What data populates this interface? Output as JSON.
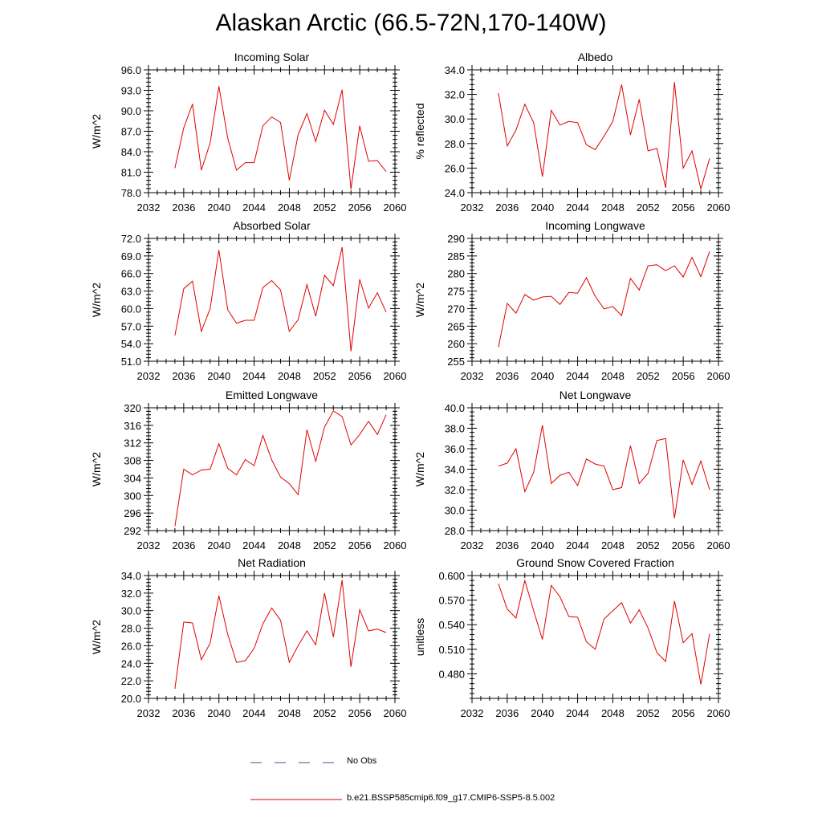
{
  "title": "Alaskan Arctic (66.5-72N,170-140W)",
  "colors": {
    "model_line": "#e00000",
    "obs_line": "#4a4aa0",
    "axis": "#000000"
  },
  "legend": [
    {
      "label": "No Obs",
      "style": "dashed",
      "color": "#4a4aa0"
    },
    {
      "label": "b.e21.BSSP585cmip6.f09_g17.CMIP6-SSP5-8.5.002",
      "style": "solid",
      "color": "#e00000"
    }
  ],
  "chart_data": [
    {
      "type": "line",
      "title": "Incoming Solar",
      "xlabel": "",
      "ylabel": "W/m^2",
      "xlim": [
        2032,
        2060
      ],
      "ylim": [
        78,
        96
      ],
      "xticks": [
        2032,
        2036,
        2040,
        2044,
        2048,
        2052,
        2056,
        2060
      ],
      "yticks": [
        "78.0",
        "81.0",
        "84.0",
        "87.0",
        "90.0",
        "93.0",
        "96.0"
      ],
      "x": [
        2035,
        2036,
        2037,
        2038,
        2039,
        2040,
        2041,
        2042,
        2043,
        2044,
        2045,
        2046,
        2047,
        2048,
        2049,
        2050,
        2051,
        2052,
        2053,
        2054,
        2055,
        2056,
        2057,
        2058,
        2059
      ],
      "y": [
        81.6,
        87.5,
        91.0,
        81.3,
        85.3,
        93.6,
        86.0,
        81.3,
        82.4,
        82.4,
        87.8,
        89.1,
        88.3,
        79.8,
        86.5,
        89.6,
        85.5,
        90.1,
        88.0,
        93.1,
        78.5,
        87.8,
        82.6,
        82.7,
        81.1
      ]
    },
    {
      "type": "line",
      "title": "Albedo",
      "xlabel": "",
      "ylabel": "% reflected",
      "xlim": [
        2032,
        2060
      ],
      "ylim": [
        24,
        34
      ],
      "xticks": [
        2032,
        2036,
        2040,
        2044,
        2048,
        2052,
        2056,
        2060
      ],
      "yticks": [
        "24.0",
        "26.0",
        "28.0",
        "30.0",
        "32.0",
        "34.0"
      ],
      "x": [
        2035,
        2036,
        2037,
        2038,
        2039,
        2040,
        2041,
        2042,
        2043,
        2044,
        2045,
        2046,
        2047,
        2048,
        2049,
        2050,
        2051,
        2052,
        2053,
        2054,
        2055,
        2056,
        2057,
        2058,
        2059
      ],
      "y": [
        32.1,
        27.8,
        29.1,
        31.2,
        29.7,
        25.3,
        30.7,
        29.5,
        29.8,
        29.7,
        27.9,
        27.5,
        28.6,
        29.8,
        32.8,
        28.7,
        31.6,
        27.4,
        27.6,
        24.4,
        33.0,
        26.0,
        27.4,
        24.3,
        26.8
      ]
    },
    {
      "type": "line",
      "title": "Absorbed Solar",
      "xlabel": "",
      "ylabel": "W/m^2",
      "xlim": [
        2032,
        2060
      ],
      "ylim": [
        51,
        72
      ],
      "xticks": [
        2032,
        2036,
        2040,
        2044,
        2048,
        2052,
        2056,
        2060
      ],
      "yticks": [
        "51.0",
        "54.0",
        "57.0",
        "60.0",
        "63.0",
        "66.0",
        "69.0",
        "72.0"
      ],
      "x": [
        2035,
        2036,
        2037,
        2038,
        2039,
        2040,
        2041,
        2042,
        2043,
        2044,
        2045,
        2046,
        2047,
        2048,
        2049,
        2050,
        2051,
        2052,
        2053,
        2054,
        2055,
        2056,
        2057,
        2058,
        2059
      ],
      "y": [
        55.4,
        63.4,
        64.7,
        56.1,
        60.0,
        70.0,
        59.8,
        57.5,
        58.0,
        58.0,
        63.6,
        64.8,
        63.2,
        56.1,
        58.1,
        64.1,
        58.7,
        65.7,
        63.9,
        70.5,
        52.7,
        65.0,
        60.1,
        62.7,
        59.4
      ]
    },
    {
      "type": "line",
      "title": "Incoming Longwave",
      "xlabel": "",
      "ylabel": "W/m^2",
      "xlim": [
        2032,
        2060
      ],
      "ylim": [
        255,
        290
      ],
      "xticks": [
        2032,
        2036,
        2040,
        2044,
        2048,
        2052,
        2056,
        2060
      ],
      "yticks": [
        "255",
        "260",
        "265",
        "270",
        "275",
        "280",
        "285",
        "290"
      ],
      "x": [
        2035,
        2036,
        2037,
        2038,
        2039,
        2040,
        2041,
        2042,
        2043,
        2044,
        2045,
        2046,
        2047,
        2048,
        2049,
        2050,
        2051,
        2052,
        2053,
        2054,
        2055,
        2056,
        2057,
        2058,
        2059
      ],
      "y": [
        259.0,
        271.5,
        268.7,
        274.0,
        272.4,
        273.3,
        273.5,
        271.2,
        274.6,
        274.4,
        278.8,
        273.5,
        269.9,
        270.6,
        268.0,
        278.6,
        275.3,
        282.2,
        282.5,
        280.8,
        282.2,
        279.0,
        284.6,
        279.1,
        286.3
      ]
    },
    {
      "type": "line",
      "title": "Emitted Longwave",
      "xlabel": "",
      "ylabel": "W/m^2",
      "xlim": [
        2032,
        2060
      ],
      "ylim": [
        292,
        320
      ],
      "xticks": [
        2032,
        2036,
        2040,
        2044,
        2048,
        2052,
        2056,
        2060
      ],
      "yticks": [
        "292",
        "296",
        "300",
        "304",
        "308",
        "312",
        "316",
        "320"
      ],
      "x": [
        2035,
        2036,
        2037,
        2038,
        2039,
        2040,
        2041,
        2042,
        2043,
        2044,
        2045,
        2046,
        2047,
        2048,
        2049,
        2050,
        2051,
        2052,
        2053,
        2054,
        2055,
        2056,
        2057,
        2058,
        2059
      ],
      "y": [
        293.0,
        306.0,
        304.7,
        305.8,
        306.0,
        311.8,
        306.2,
        304.7,
        308.2,
        306.8,
        313.7,
        308.1,
        304.2,
        302.7,
        300.2,
        315.0,
        307.8,
        315.6,
        319.3,
        318.0,
        311.5,
        313.9,
        316.9,
        313.9,
        318.4
      ]
    },
    {
      "type": "line",
      "title": "Net Longwave",
      "xlabel": "",
      "ylabel": "W/m^2",
      "xlim": [
        2032,
        2060
      ],
      "ylim": [
        28,
        40
      ],
      "xticks": [
        2032,
        2036,
        2040,
        2044,
        2048,
        2052,
        2056,
        2060
      ],
      "yticks": [
        "28.0",
        "30.0",
        "32.0",
        "34.0",
        "36.0",
        "38.0",
        "40.0"
      ],
      "x": [
        2035,
        2036,
        2037,
        2038,
        2039,
        2040,
        2041,
        2042,
        2043,
        2044,
        2045,
        2046,
        2047,
        2048,
        2049,
        2050,
        2051,
        2052,
        2053,
        2054,
        2055,
        2056,
        2057,
        2058,
        2059
      ],
      "y": [
        34.3,
        34.6,
        36.0,
        31.8,
        33.7,
        38.3,
        32.6,
        33.4,
        33.7,
        32.4,
        35.0,
        34.5,
        34.3,
        32.0,
        32.2,
        36.3,
        32.6,
        33.6,
        36.8,
        37.0,
        29.2,
        34.9,
        32.5,
        34.8,
        32.0
      ]
    },
    {
      "type": "line",
      "title": "Net Radiation",
      "xlabel": "",
      "ylabel": "W/m^2",
      "xlim": [
        2032,
        2060
      ],
      "ylim": [
        20,
        34
      ],
      "xticks": [
        2032,
        2036,
        2040,
        2044,
        2048,
        2052,
        2056,
        2060
      ],
      "yticks": [
        "20.0",
        "22.0",
        "24.0",
        "26.0",
        "28.0",
        "30.0",
        "32.0",
        "34.0"
      ],
      "x": [
        2035,
        2036,
        2037,
        2038,
        2039,
        2040,
        2041,
        2042,
        2043,
        2044,
        2045,
        2046,
        2047,
        2048,
        2049,
        2050,
        2051,
        2052,
        2053,
        2054,
        2055,
        2056,
        2057,
        2058,
        2059
      ],
      "y": [
        21.1,
        28.7,
        28.6,
        24.4,
        26.3,
        31.7,
        27.3,
        24.1,
        24.3,
        25.7,
        28.5,
        30.3,
        28.9,
        24.1,
        26.0,
        27.7,
        26.1,
        32.0,
        27.0,
        33.5,
        23.6,
        30.1,
        27.7,
        27.9,
        27.5
      ]
    },
    {
      "type": "line",
      "title": "Ground Snow Covered Fraction",
      "xlabel": "",
      "ylabel": "unitless",
      "xlim": [
        2032,
        2060
      ],
      "ylim": [
        0.45,
        0.6
      ],
      "xticks": [
        2032,
        2036,
        2040,
        2044,
        2048,
        2052,
        2056,
        2060
      ],
      "yticks": [
        "0.480",
        "0.510",
        "0.540",
        "0.570",
        "0.600"
      ],
      "x": [
        2035,
        2036,
        2037,
        2038,
        2039,
        2040,
        2041,
        2042,
        2043,
        2044,
        2045,
        2046,
        2047,
        2048,
        2049,
        2050,
        2051,
        2052,
        2053,
        2054,
        2055,
        2056,
        2057,
        2058,
        2059
      ],
      "y": [
        0.59,
        0.559,
        0.548,
        0.594,
        0.557,
        0.522,
        0.588,
        0.574,
        0.55,
        0.549,
        0.519,
        0.51,
        0.547,
        0.557,
        0.567,
        0.542,
        0.558,
        0.536,
        0.506,
        0.495,
        0.569,
        0.518,
        0.529,
        0.467,
        0.529
      ]
    }
  ]
}
